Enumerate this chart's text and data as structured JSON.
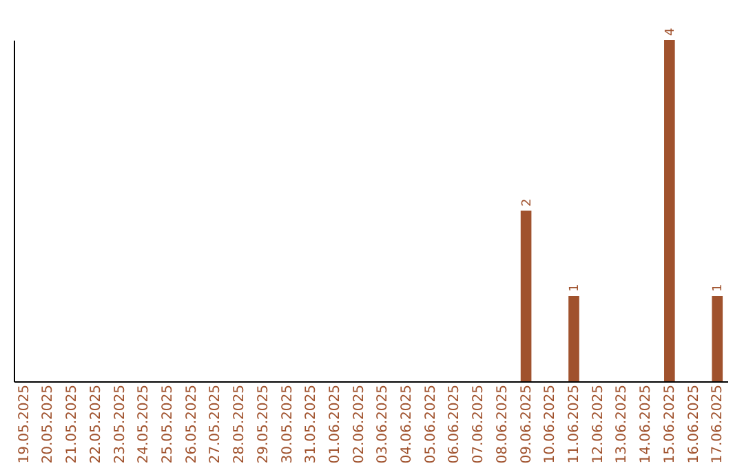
{
  "chart_data": {
    "type": "bar",
    "categories": [
      "19.05.2025",
      "20.05.2025",
      "21.05.2025",
      "22.05.2025",
      "23.05.2025",
      "24.05.2025",
      "25.05.2025",
      "26.05.2025",
      "27.05.2025",
      "28.05.2025",
      "29.05.2025",
      "30.05.2025",
      "31.05.2025",
      "01.06.2025",
      "02.06.2025",
      "03.06.2025",
      "04.06.2025",
      "05.06.2025",
      "06.06.2025",
      "07.06.2025",
      "08.06.2025",
      "09.06.2025",
      "10.06.2025",
      "11.06.2025",
      "12.06.2025",
      "13.06.2025",
      "14.06.2025",
      "15.06.2025",
      "16.06.2025",
      "17.06.2025"
    ],
    "values": [
      null,
      null,
      null,
      null,
      null,
      null,
      null,
      null,
      null,
      null,
      null,
      null,
      null,
      null,
      null,
      null,
      null,
      null,
      null,
      null,
      null,
      2,
      null,
      1,
      null,
      null,
      null,
      4,
      null,
      1
    ],
    "data_labels": true,
    "color": "#a0522d",
    "ylim": [
      0,
      4
    ],
    "tick_labels": "x"
  }
}
